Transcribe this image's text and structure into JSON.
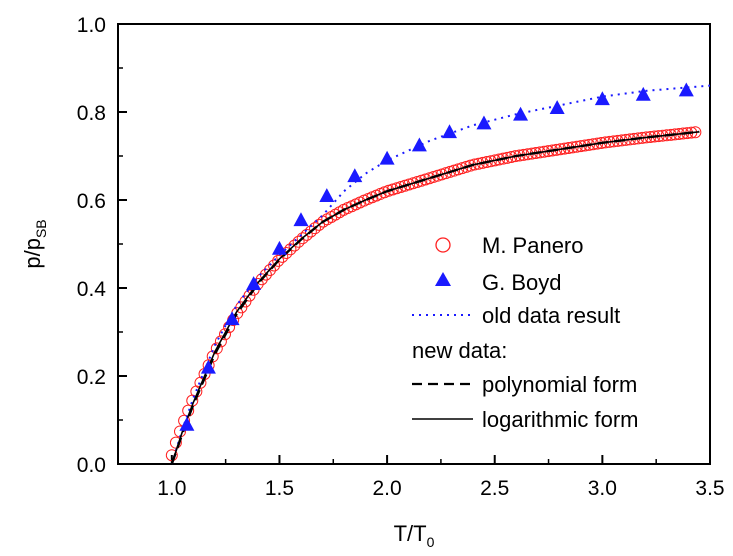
{
  "chart_data": {
    "type": "scatter",
    "xlabel": {
      "main": "T/T",
      "sub": "0"
    },
    "ylabel": {
      "main": "p/p",
      "sub": "SB"
    },
    "xlim": [
      0.75,
      3.5
    ],
    "ylim": [
      0.0,
      1.0
    ],
    "xticks": [
      1.0,
      1.5,
      2.0,
      2.5,
      3.0,
      3.5
    ],
    "xtick_labels": [
      "1.0",
      "1.5",
      "2.0",
      "2.5",
      "3.0",
      "3.5"
    ],
    "yticks": [
      0.0,
      0.2,
      0.4,
      0.6,
      0.8,
      1.0
    ],
    "ytick_labels": [
      "0.0",
      "0.2",
      "0.4",
      "0.6",
      "0.8",
      "1.0"
    ],
    "grid": false,
    "legend_position": "center-right",
    "legend_heading": "new data:",
    "series": [
      {
        "name": "M. Panero",
        "kind": "scatter",
        "marker": "open-circle",
        "color": "#ff2020",
        "x_range": [
          1.0,
          3.45
        ],
        "x": [
          1.0,
          1.02,
          1.05,
          1.1,
          1.2,
          1.3,
          1.4,
          1.5,
          1.6,
          1.7,
          1.8,
          1.9,
          2.0,
          2.2,
          2.4,
          2.6,
          2.8,
          3.0,
          3.2,
          3.45
        ],
        "y": [
          0.02,
          0.05,
          0.09,
          0.15,
          0.255,
          0.34,
          0.41,
          0.465,
          0.51,
          0.55,
          0.578,
          0.6,
          0.62,
          0.65,
          0.68,
          0.7,
          0.715,
          0.73,
          0.742,
          0.755
        ]
      },
      {
        "name": "G. Boyd",
        "kind": "scatter",
        "marker": "filled-triangle",
        "color": "#1a1aff",
        "x": [
          1.07,
          1.17,
          1.28,
          1.38,
          1.5,
          1.6,
          1.72,
          1.85,
          2.0,
          2.15,
          2.29,
          2.45,
          2.62,
          2.79,
          3.0,
          3.19,
          3.39
        ],
        "y": [
          0.09,
          0.22,
          0.33,
          0.41,
          0.49,
          0.555,
          0.61,
          0.655,
          0.695,
          0.725,
          0.755,
          0.775,
          0.795,
          0.81,
          0.83,
          0.84,
          0.85
        ]
      },
      {
        "name": "old data result",
        "kind": "line",
        "style": "dotted",
        "color": "#1a1aff",
        "x": [
          1.0,
          1.05,
          1.1,
          1.2,
          1.3,
          1.4,
          1.5,
          1.6,
          1.7,
          1.8,
          1.9,
          2.0,
          2.2,
          2.4,
          2.6,
          2.8,
          3.0,
          3.2,
          3.5
        ],
        "y": [
          0.0,
          0.08,
          0.15,
          0.27,
          0.36,
          0.425,
          0.475,
          0.52,
          0.565,
          0.62,
          0.66,
          0.69,
          0.735,
          0.77,
          0.795,
          0.815,
          0.835,
          0.848,
          0.86
        ]
      },
      {
        "name": "polynomial form",
        "kind": "line",
        "style": "dashed",
        "color": "#000000",
        "x": [
          1.0,
          1.05,
          1.1,
          1.2,
          1.3,
          1.4,
          1.5,
          1.6,
          1.7,
          1.8,
          1.9,
          2.0,
          2.2,
          2.4,
          2.6,
          2.8,
          3.0,
          3.2,
          3.45
        ],
        "y": [
          0.0,
          0.07,
          0.135,
          0.25,
          0.34,
          0.41,
          0.465,
          0.51,
          0.55,
          0.578,
          0.6,
          0.62,
          0.65,
          0.68,
          0.7,
          0.715,
          0.73,
          0.742,
          0.755
        ]
      },
      {
        "name": "logarithmic form",
        "kind": "line",
        "style": "solid",
        "color": "#000000",
        "x": [
          1.0,
          1.05,
          1.1,
          1.2,
          1.3,
          1.4,
          1.5,
          1.6,
          1.7,
          1.8,
          1.9,
          2.0,
          2.2,
          2.4,
          2.6,
          2.8,
          3.0,
          3.2,
          3.45
        ],
        "y": [
          0.0,
          0.075,
          0.14,
          0.255,
          0.345,
          0.412,
          0.466,
          0.511,
          0.55,
          0.578,
          0.6,
          0.62,
          0.65,
          0.68,
          0.7,
          0.715,
          0.73,
          0.742,
          0.755
        ]
      }
    ]
  }
}
